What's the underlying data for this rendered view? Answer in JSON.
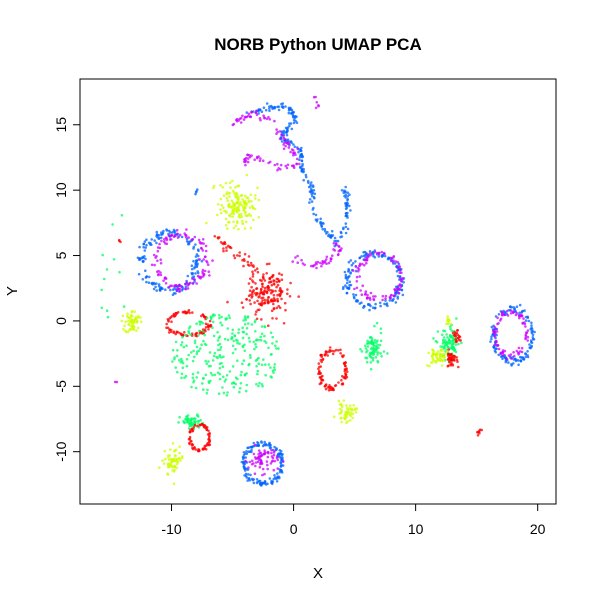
{
  "chart_data": {
    "type": "scatter",
    "title": "NORB Python UMAP PCA",
    "xlabel": "X",
    "ylabel": "Y",
    "xlim": [
      -17.5,
      21.5
    ],
    "ylim": [
      -14,
      18.5
    ],
    "xticks": [
      -10,
      0,
      10,
      20
    ],
    "yticks": [
      -10,
      -5,
      0,
      5,
      10,
      15
    ],
    "grid": false,
    "legend": "none",
    "colors": {
      "red": "#ff0000",
      "yellow": "#ccff00",
      "green": "#00ff66",
      "blue": "#0066ff",
      "magenta": "#cc00ff"
    },
    "clusters": [
      {
        "color": "blue",
        "shape": "ring",
        "cx": -10.2,
        "cy": 4.5,
        "rx": 2.3,
        "ry": 2.2,
        "n": 160
      },
      {
        "color": "magenta",
        "shape": "ring",
        "cx": -9.2,
        "cy": 4.6,
        "rx": 2.1,
        "ry": 2.0,
        "n": 110
      },
      {
        "color": "yellow",
        "shape": "blob",
        "cx": -4.6,
        "cy": 8.8,
        "rx": 1.5,
        "ry": 1.7,
        "n": 160
      },
      {
        "color": "red",
        "shape": "blob",
        "cx": -2.2,
        "cy": 2.2,
        "rx": 1.6,
        "ry": 1.8,
        "n": 170
      },
      {
        "color": "red",
        "shape": "curve",
        "pts": [
          [
            -6.5,
            6.5
          ],
          [
            -5.5,
            5.6
          ],
          [
            -4.2,
            4.8
          ],
          [
            -3.0,
            3.8
          ]
        ],
        "n": 40,
        "spread": 0.35
      },
      {
        "color": "red",
        "shape": "ring",
        "cx": -8.6,
        "cy": -0.2,
        "rx": 1.7,
        "ry": 0.9,
        "n": 90
      },
      {
        "color": "yellow",
        "shape": "blob",
        "cx": -13.2,
        "cy": -0.1,
        "rx": 0.6,
        "ry": 0.9,
        "n": 60
      },
      {
        "color": "green",
        "shape": "scatter",
        "cx": -5.5,
        "cy": -2.6,
        "rx": 4.5,
        "ry": 3.2,
        "n": 260
      },
      {
        "color": "green",
        "shape": "blob",
        "cx": -8.3,
        "cy": -7.8,
        "rx": 1.0,
        "ry": 0.6,
        "n": 55
      },
      {
        "color": "red",
        "shape": "ring",
        "cx": -7.7,
        "cy": -8.9,
        "rx": 0.8,
        "ry": 1.0,
        "n": 70
      },
      {
        "color": "yellow",
        "shape": "blob",
        "cx": -9.9,
        "cy": -10.8,
        "rx": 0.7,
        "ry": 1.1,
        "n": 65
      },
      {
        "color": "blue",
        "shape": "ring",
        "cx": -2.5,
        "cy": -10.9,
        "rx": 1.6,
        "ry": 1.5,
        "n": 150
      },
      {
        "color": "magenta",
        "shape": "blob",
        "cx": -2.5,
        "cy": -10.6,
        "rx": 1.2,
        "ry": 1.0,
        "n": 70
      },
      {
        "color": "red",
        "shape": "ring",
        "cx": 3.2,
        "cy": -3.7,
        "rx": 1.1,
        "ry": 1.5,
        "n": 100
      },
      {
        "color": "green",
        "shape": "blob",
        "cx": 6.5,
        "cy": -2.2,
        "rx": 0.8,
        "ry": 1.4,
        "n": 80
      },
      {
        "color": "yellow",
        "shape": "blob",
        "cx": 4.3,
        "cy": -7.0,
        "rx": 0.8,
        "ry": 0.7,
        "n": 50
      },
      {
        "color": "blue",
        "shape": "ring",
        "cx": 6.6,
        "cy": 3.1,
        "rx": 2.2,
        "ry": 2.0,
        "n": 150
      },
      {
        "color": "magenta",
        "shape": "ring",
        "cx": 7.0,
        "cy": 3.4,
        "rx": 1.8,
        "ry": 1.7,
        "n": 90
      },
      {
        "color": "blue",
        "shape": "curve",
        "pts": [
          [
            -4.0,
            15.8
          ],
          [
            -2.5,
            16.2
          ],
          [
            -0.5,
            16.5
          ],
          [
            0.2,
            15.5
          ],
          [
            -1.0,
            14.0
          ],
          [
            0.5,
            13.2
          ],
          [
            0.8,
            11.5
          ],
          [
            1.5,
            10.0
          ],
          [
            1.6,
            8.5
          ],
          [
            2.5,
            7.0
          ],
          [
            3.5,
            6.0
          ],
          [
            4.3,
            7.2
          ],
          [
            4.4,
            9.0
          ],
          [
            4.2,
            10.2
          ]
        ],
        "n": 230,
        "spread": 0.25
      },
      {
        "color": "magenta",
        "shape": "curve",
        "pts": [
          [
            -5.0,
            15.2
          ],
          [
            -3.5,
            15.8
          ],
          [
            -2.0,
            15.4
          ],
          [
            -1.0,
            14.0
          ],
          [
            0.0,
            13.0
          ],
          [
            0.4,
            12.0
          ],
          [
            -1.5,
            11.8
          ],
          [
            -3.5,
            12.6
          ],
          [
            -4.0,
            12.2
          ]
        ],
        "n": 100,
        "spread": 0.3
      },
      {
        "color": "magenta",
        "shape": "curve",
        "pts": [
          [
            0.0,
            4.6
          ],
          [
            1.5,
            4.2
          ],
          [
            2.8,
            4.5
          ],
          [
            3.5,
            5.0
          ],
          [
            3.5,
            6.0
          ]
        ],
        "n": 45,
        "spread": 0.3
      },
      {
        "color": "magenta",
        "shape": "curve",
        "pts": [
          [
            1.8,
            17.2
          ],
          [
            2.0,
            16.0
          ]
        ],
        "n": 6,
        "spread": 0.2
      },
      {
        "color": "green",
        "shape": "blob",
        "cx": 12.8,
        "cy": -1.8,
        "rx": 0.9,
        "ry": 1.2,
        "n": 90
      },
      {
        "color": "yellow",
        "shape": "blob",
        "cx": 11.8,
        "cy": -2.8,
        "rx": 0.8,
        "ry": 0.7,
        "n": 55
      },
      {
        "color": "red",
        "shape": "blob",
        "cx": 12.9,
        "cy": -2.9,
        "rx": 0.5,
        "ry": 0.6,
        "n": 40
      },
      {
        "color": "red",
        "shape": "blob",
        "cx": 13.4,
        "cy": -1.2,
        "rx": 0.3,
        "ry": 0.4,
        "n": 20
      },
      {
        "color": "yellow",
        "shape": "blob",
        "cx": 12.7,
        "cy": 0.0,
        "rx": 0.3,
        "ry": 0.3,
        "n": 12
      },
      {
        "color": "blue",
        "shape": "ring",
        "cx": 18.0,
        "cy": -1.1,
        "rx": 1.6,
        "ry": 2.0,
        "n": 130
      },
      {
        "color": "magenta",
        "shape": "ring",
        "cx": 17.8,
        "cy": -1.0,
        "rx": 1.3,
        "ry": 1.7,
        "n": 80
      },
      {
        "color": "red",
        "shape": "blob",
        "cx": 15.2,
        "cy": -8.5,
        "rx": 0.25,
        "ry": 0.25,
        "n": 8
      },
      {
        "color": "blue",
        "shape": "blob",
        "cx": -8.1,
        "cy": 10.0,
        "rx": 0.2,
        "ry": 0.2,
        "n": 4
      },
      {
        "color": "red",
        "shape": "blob",
        "cx": -14.3,
        "cy": 6.1,
        "rx": 0.1,
        "ry": 0.1,
        "n": 3
      },
      {
        "color": "magenta",
        "shape": "blob",
        "cx": -14.5,
        "cy": -4.7,
        "rx": 0.1,
        "ry": 0.1,
        "n": 2
      },
      {
        "color": "green",
        "shape": "scatter",
        "cx": -14.5,
        "cy": 3.5,
        "rx": 1.5,
        "ry": 5.0,
        "n": 12
      }
    ]
  }
}
